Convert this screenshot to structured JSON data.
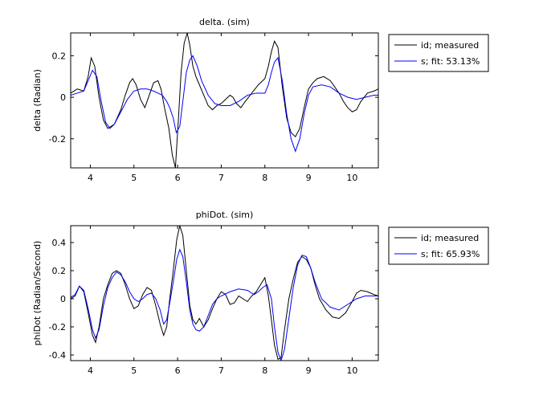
{
  "chart_data": [
    {
      "type": "line",
      "title": "delta. (sim)",
      "ylabel": "delta (Radian)",
      "xlabel": "",
      "xlim": [
        3.55,
        10.6
      ],
      "ylim": [
        -0.34,
        0.31
      ],
      "xticks": [
        4,
        5,
        6,
        7,
        8,
        9,
        10
      ],
      "yticks": [
        -0.2,
        0,
        0.2
      ],
      "ytick_labels": [
        "-0.2",
        "0",
        "0.2"
      ],
      "grid": false,
      "legend_position": "outside-right",
      "series": [
        {
          "name": "id; measured",
          "color": "#000000",
          "x": [
            3.55,
            3.7,
            3.85,
            3.95,
            4.02,
            4.1,
            4.2,
            4.3,
            4.4,
            4.55,
            4.7,
            4.8,
            4.9,
            4.97,
            5.05,
            5.15,
            5.25,
            5.35,
            5.45,
            5.55,
            5.62,
            5.7,
            5.8,
            5.88,
            5.95,
            6.02,
            6.08,
            6.15,
            6.22,
            6.28,
            6.35,
            6.42,
            6.5,
            6.6,
            6.7,
            6.8,
            6.9,
            7.0,
            7.1,
            7.2,
            7.27,
            7.35,
            7.45,
            7.55,
            7.7,
            7.85,
            8.0,
            8.08,
            8.15,
            8.22,
            8.3,
            8.4,
            8.5,
            8.6,
            8.7,
            8.8,
            8.9,
            9.0,
            9.1,
            9.2,
            9.35,
            9.5,
            9.6,
            9.7,
            9.8,
            9.9,
            10.0,
            10.1,
            10.2,
            10.35,
            10.5,
            10.6
          ],
          "y": [
            0.02,
            0.04,
            0.03,
            0.1,
            0.19,
            0.15,
            0.0,
            -0.11,
            -0.15,
            -0.13,
            -0.06,
            0.01,
            0.07,
            0.09,
            0.06,
            -0.01,
            -0.05,
            0.01,
            0.07,
            0.08,
            0.04,
            -0.05,
            -0.15,
            -0.28,
            -0.34,
            -0.1,
            0.12,
            0.26,
            0.31,
            0.25,
            0.15,
            0.1,
            0.06,
            0.01,
            -0.04,
            -0.06,
            -0.04,
            -0.03,
            -0.01,
            0.01,
            0.0,
            -0.03,
            -0.05,
            -0.02,
            0.02,
            0.06,
            0.09,
            0.15,
            0.22,
            0.27,
            0.24,
            0.05,
            -0.1,
            -0.17,
            -0.19,
            -0.15,
            -0.05,
            0.04,
            0.07,
            0.09,
            0.1,
            0.08,
            0.05,
            0.02,
            -0.02,
            -0.05,
            -0.07,
            -0.06,
            -0.02,
            0.02,
            0.03,
            0.04
          ]
        },
        {
          "name": "s; fit: 53.13%",
          "color": "#0000ff",
          "x": [
            3.55,
            3.7,
            3.85,
            3.95,
            4.05,
            4.15,
            4.25,
            4.35,
            4.45,
            4.55,
            4.7,
            4.85,
            5.0,
            5.15,
            5.3,
            5.45,
            5.55,
            5.65,
            5.75,
            5.82,
            5.9,
            5.97,
            6.05,
            6.12,
            6.2,
            6.28,
            6.35,
            6.45,
            6.55,
            6.7,
            6.85,
            7.0,
            7.2,
            7.4,
            7.6,
            7.8,
            8.0,
            8.08,
            8.15,
            8.22,
            8.3,
            8.4,
            8.5,
            8.6,
            8.7,
            8.8,
            8.9,
            9.0,
            9.1,
            9.3,
            9.5,
            9.7,
            9.9,
            10.1,
            10.3,
            10.5,
            10.6
          ],
          "y": [
            0.01,
            0.02,
            0.03,
            0.08,
            0.13,
            0.1,
            -0.02,
            -0.12,
            -0.15,
            -0.13,
            -0.07,
            -0.01,
            0.03,
            0.04,
            0.04,
            0.03,
            0.02,
            0.01,
            -0.02,
            -0.05,
            -0.1,
            -0.17,
            -0.14,
            -0.02,
            0.12,
            0.18,
            0.2,
            0.15,
            0.08,
            0.01,
            -0.03,
            -0.04,
            -0.04,
            -0.02,
            0.01,
            0.02,
            0.02,
            0.06,
            0.12,
            0.17,
            0.19,
            0.08,
            -0.08,
            -0.2,
            -0.26,
            -0.2,
            -0.08,
            0.01,
            0.05,
            0.06,
            0.05,
            0.02,
            0.0,
            -0.01,
            0.0,
            0.01,
            0.01
          ]
        }
      ]
    },
    {
      "type": "line",
      "title": "phiDot. (sim)",
      "ylabel": "phiDot (Radian/Second)",
      "xlabel": "",
      "xlim": [
        3.55,
        10.6
      ],
      "ylim": [
        -0.44,
        0.52
      ],
      "xticks": [
        4,
        5,
        6,
        7,
        8,
        9,
        10
      ],
      "yticks": [
        -0.4,
        -0.2,
        0,
        0.2,
        0.4
      ],
      "ytick_labels": [
        "-0.4",
        "-0.2",
        "0",
        "0.2",
        "0.4"
      ],
      "grid": false,
      "legend_position": "outside-right",
      "series": [
        {
          "name": "id; measured",
          "color": "#000000",
          "x": [
            3.55,
            3.65,
            3.75,
            3.85,
            3.95,
            4.05,
            4.12,
            4.2,
            4.3,
            4.4,
            4.5,
            4.6,
            4.7,
            4.8,
            4.9,
            5.0,
            5.1,
            5.2,
            5.3,
            5.4,
            5.5,
            5.6,
            5.68,
            5.75,
            5.82,
            5.9,
            5.98,
            6.05,
            6.12,
            6.2,
            6.28,
            6.35,
            6.42,
            6.5,
            6.6,
            6.7,
            6.8,
            6.9,
            7.0,
            7.1,
            7.2,
            7.3,
            7.4,
            7.5,
            7.6,
            7.7,
            7.8,
            7.9,
            8.0,
            8.08,
            8.15,
            8.22,
            8.3,
            8.37,
            8.45,
            8.55,
            8.65,
            8.75,
            8.85,
            8.95,
            9.05,
            9.15,
            9.25,
            9.4,
            9.55,
            9.7,
            9.85,
            10.0,
            10.1,
            10.2,
            10.35,
            10.5,
            10.6
          ],
          "y": [
            0.0,
            0.02,
            0.09,
            0.05,
            -0.1,
            -0.26,
            -0.31,
            -0.2,
            0.0,
            0.1,
            0.18,
            0.2,
            0.18,
            0.1,
            0.0,
            -0.07,
            -0.05,
            0.03,
            0.08,
            0.06,
            -0.05,
            -0.18,
            -0.26,
            -0.2,
            0.0,
            0.2,
            0.42,
            0.52,
            0.45,
            0.2,
            -0.05,
            -0.15,
            -0.18,
            -0.14,
            -0.2,
            -0.15,
            -0.07,
            0.0,
            0.05,
            0.03,
            -0.04,
            -0.03,
            0.02,
            0.0,
            -0.02,
            0.02,
            0.05,
            0.1,
            0.15,
            0.02,
            -0.15,
            -0.33,
            -0.43,
            -0.42,
            -0.22,
            0.0,
            0.14,
            0.26,
            0.3,
            0.28,
            0.22,
            0.1,
            0.0,
            -0.08,
            -0.13,
            -0.14,
            -0.1,
            -0.02,
            0.04,
            0.06,
            0.05,
            0.03,
            0.02
          ]
        },
        {
          "name": "s; fit: 65.93%",
          "color": "#0000ff",
          "x": [
            3.55,
            3.65,
            3.75,
            3.85,
            3.95,
            4.05,
            4.12,
            4.2,
            4.3,
            4.4,
            4.5,
            4.6,
            4.7,
            4.8,
            4.9,
            5.0,
            5.1,
            5.2,
            5.3,
            5.4,
            5.5,
            5.6,
            5.68,
            5.75,
            5.82,
            5.9,
            5.98,
            6.05,
            6.12,
            6.2,
            6.28,
            6.35,
            6.42,
            6.5,
            6.6,
            6.7,
            6.8,
            6.9,
            7.0,
            7.2,
            7.4,
            7.6,
            7.75,
            7.85,
            7.95,
            8.05,
            8.15,
            8.22,
            8.3,
            8.37,
            8.45,
            8.55,
            8.65,
            8.75,
            8.85,
            8.95,
            9.05,
            9.15,
            9.3,
            9.5,
            9.7,
            9.9,
            10.1,
            10.3,
            10.5,
            10.6
          ],
          "y": [
            0.01,
            0.03,
            0.09,
            0.06,
            -0.07,
            -0.22,
            -0.28,
            -0.22,
            -0.05,
            0.08,
            0.15,
            0.19,
            0.17,
            0.12,
            0.05,
            0.0,
            -0.02,
            0.0,
            0.03,
            0.04,
            0.0,
            -0.08,
            -0.18,
            -0.15,
            -0.03,
            0.12,
            0.28,
            0.35,
            0.3,
            0.12,
            -0.08,
            -0.18,
            -0.22,
            -0.23,
            -0.2,
            -0.12,
            -0.04,
            0.0,
            0.02,
            0.05,
            0.07,
            0.06,
            0.03,
            0.05,
            0.08,
            0.1,
            0.0,
            -0.2,
            -0.38,
            -0.44,
            -0.36,
            -0.14,
            0.08,
            0.24,
            0.31,
            0.3,
            0.22,
            0.12,
            0.0,
            -0.06,
            -0.08,
            -0.04,
            0.0,
            0.02,
            0.02,
            0.02
          ]
        }
      ]
    }
  ]
}
